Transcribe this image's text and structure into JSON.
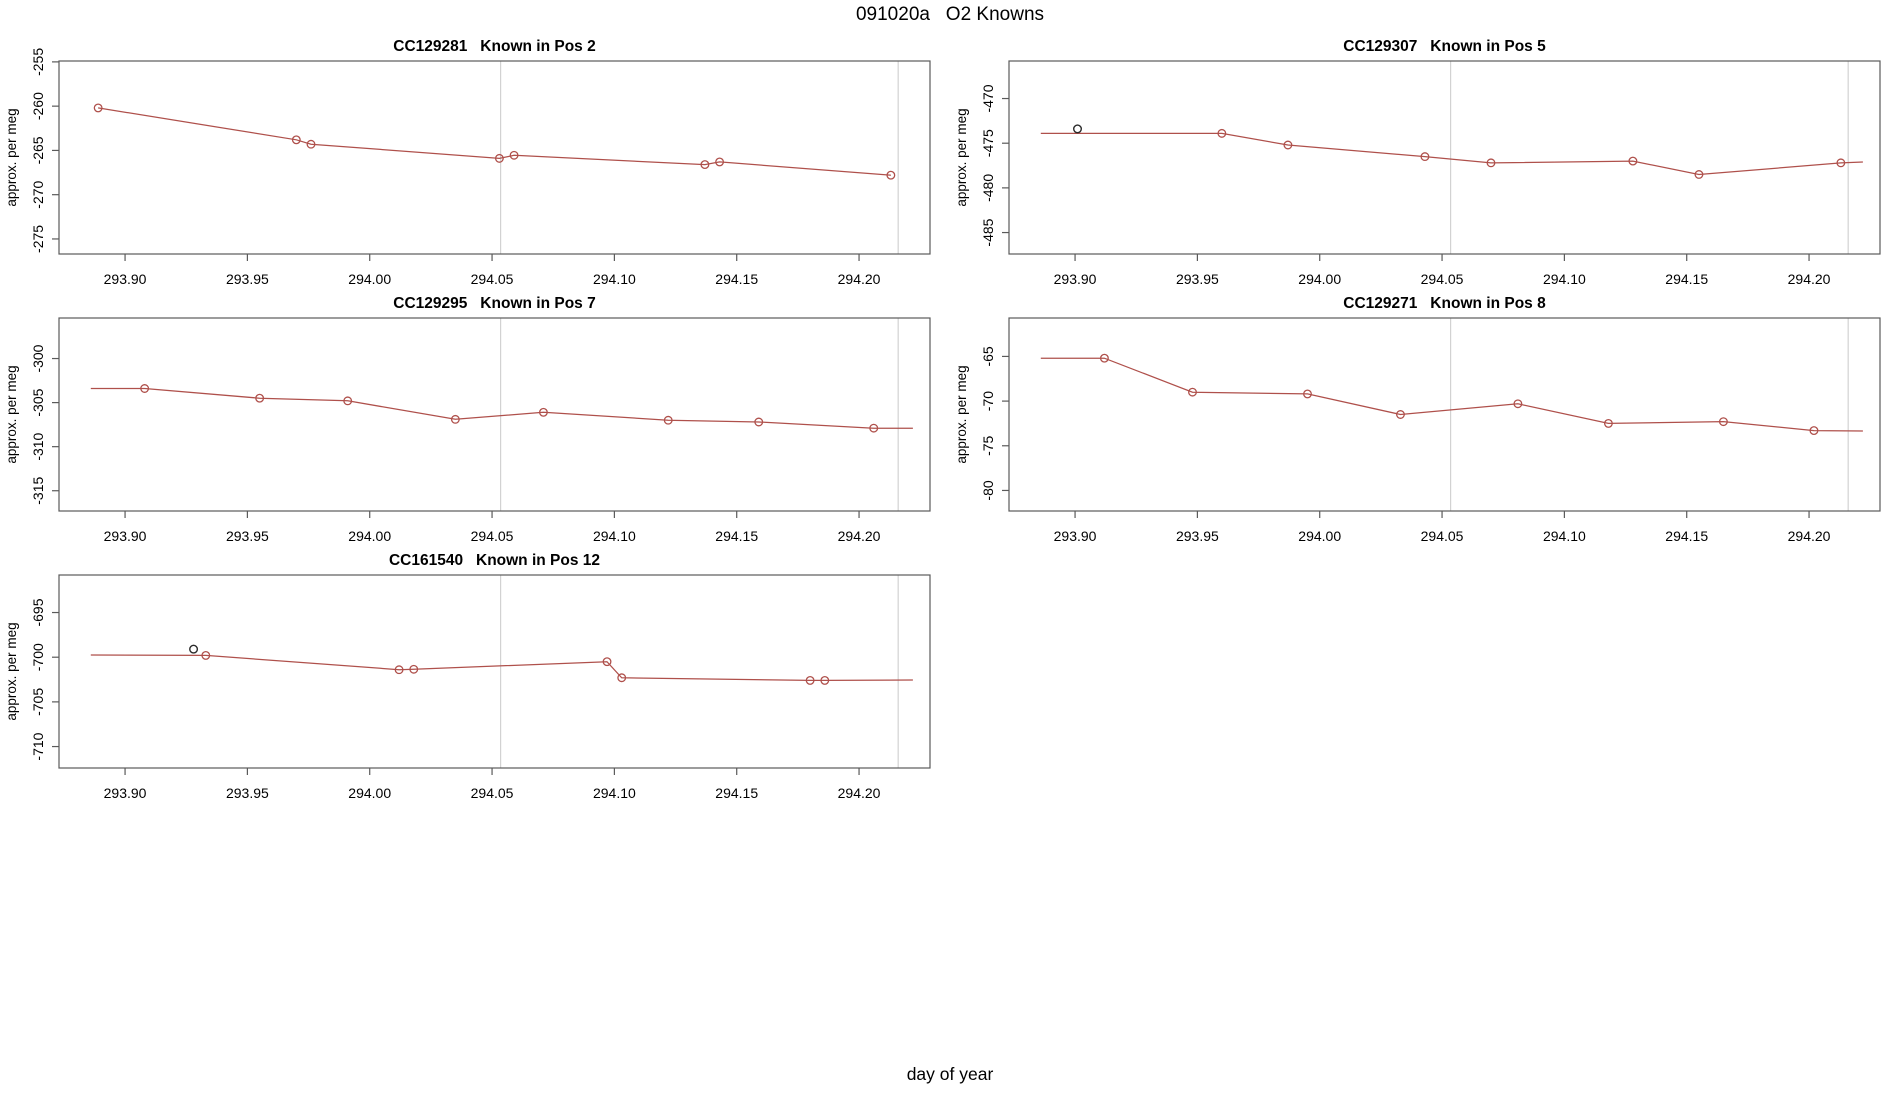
{
  "figure": {
    "title": "091020a   O2 Knowns",
    "x_axis_label": "day of year",
    "y_axis_label": "approx. per meg"
  },
  "style": {
    "series_color": "#af504b",
    "flag_point_color": "#2a2a2a",
    "grid_color": "#d2d2d2",
    "box_color": "#5a5a5a",
    "text_color": "#000000"
  },
  "axes": {
    "xlim": [
      293.873,
      294.229
    ],
    "x_tick_values": [
      293.9,
      293.95,
      294.0,
      294.05,
      294.1,
      294.15,
      294.2
    ],
    "x_tick_labels": [
      "293.90",
      "293.95",
      "294.00",
      "294.05",
      "294.10",
      "294.15",
      "294.20"
    ],
    "vlines": [
      294.0535,
      294.216
    ]
  },
  "chart_data": [
    {
      "type": "line",
      "panel": "row1-left",
      "title": "CC129281   Known in Pos 2",
      "ylabel": "approx. per meg",
      "xlabel": "day of year",
      "ylim": [
        -276.7,
        -254.9
      ],
      "y_ticks": [
        -255,
        -260,
        -265,
        -270,
        -275
      ],
      "line_x": [
        293.889,
        293.97,
        293.976,
        294.053,
        294.059,
        294.137,
        294.143,
        294.213
      ],
      "line_y": [
        -260.2,
        -263.8,
        -264.3,
        -265.9,
        -265.55,
        -266.6,
        -266.3,
        -267.8
      ],
      "marker_x": [
        293.889,
        293.97,
        293.976,
        294.053,
        294.059,
        294.137,
        294.143,
        294.213
      ],
      "marker_y": [
        -260.2,
        -263.8,
        -264.3,
        -265.9,
        -265.55,
        -266.6,
        -266.3,
        -267.8
      ],
      "flag_x": [],
      "flag_y": []
    },
    {
      "type": "line",
      "panel": "row1-right",
      "title": "CC129307   Known in Pos 5",
      "ylabel": "approx. per meg",
      "xlabel": "day of year",
      "ylim": [
        -487.4,
        -465.8
      ],
      "y_ticks": [
        -470,
        -475,
        -480,
        -485
      ],
      "line_x": [
        293.886,
        293.96,
        293.987,
        294.043,
        294.07,
        294.128,
        294.155,
        294.213,
        294.222
      ],
      "line_y": [
        -473.9,
        -473.9,
        -475.2,
        -476.5,
        -477.2,
        -477.0,
        -478.5,
        -477.2,
        -477.1
      ],
      "marker_x": [
        293.96,
        293.987,
        294.043,
        294.07,
        294.128,
        294.155,
        294.213
      ],
      "marker_y": [
        -473.9,
        -475.2,
        -476.5,
        -477.2,
        -477.0,
        -478.5,
        -477.2
      ],
      "flag_x": [
        293.901
      ],
      "flag_y": [
        -473.4
      ]
    },
    {
      "type": "line",
      "panel": "row2-left",
      "title": "CC129295   Known in Pos 7",
      "ylabel": "approx. per meg",
      "xlabel": "day of year",
      "ylim": [
        -317.3,
        -295.4
      ],
      "y_ticks": [
        -300,
        -305,
        -310,
        -315
      ],
      "line_x": [
        293.886,
        293.908,
        293.955,
        293.991,
        294.035,
        294.071,
        294.122,
        294.159,
        294.206,
        294.222
      ],
      "line_y": [
        -303.4,
        -303.4,
        -304.5,
        -304.8,
        -306.9,
        -306.1,
        -307.0,
        -307.2,
        -307.9,
        -307.9
      ],
      "marker_x": [
        293.908,
        293.955,
        293.991,
        294.035,
        294.071,
        294.122,
        294.159,
        294.206
      ],
      "marker_y": [
        -303.4,
        -304.5,
        -304.8,
        -306.9,
        -306.1,
        -307.0,
        -307.2,
        -307.9
      ],
      "flag_x": [],
      "flag_y": []
    },
    {
      "type": "line",
      "panel": "row2-right",
      "title": "CC129271   Known in Pos 8",
      "ylabel": "approx. per meg",
      "xlabel": "day of year",
      "ylim": [
        -82.3,
        -60.7
      ],
      "y_ticks": [
        -65,
        -70,
        -75,
        -80
      ],
      "line_x": [
        293.886,
        293.912,
        293.948,
        293.995,
        294.033,
        294.081,
        294.118,
        294.165,
        294.202,
        294.222
      ],
      "line_y": [
        -65.2,
        -65.2,
        -69.0,
        -69.2,
        -71.5,
        -70.3,
        -72.5,
        -72.3,
        -73.3,
        -73.35
      ],
      "marker_x": [
        293.912,
        293.948,
        293.995,
        294.033,
        294.081,
        294.118,
        294.165,
        294.202
      ],
      "marker_y": [
        -65.2,
        -69.0,
        -69.2,
        -71.5,
        -70.3,
        -72.5,
        -72.3,
        -73.3
      ],
      "flag_x": [],
      "flag_y": []
    },
    {
      "type": "line",
      "panel": "row3-left",
      "title": "CC161540   Known in Pos 12",
      "ylabel": "approx. per meg",
      "xlabel": "day of year",
      "ylim": [
        -712.4,
        -690.8
      ],
      "y_ticks": [
        -695,
        -700,
        -705,
        -710
      ],
      "line_x": [
        293.886,
        293.933,
        294.012,
        294.018,
        294.097,
        294.103,
        294.18,
        294.186,
        294.222
      ],
      "line_y": [
        -699.75,
        -699.8,
        -701.4,
        -701.35,
        -700.5,
        -702.3,
        -702.6,
        -702.6,
        -702.55
      ],
      "marker_x": [
        293.933,
        294.012,
        294.018,
        294.097,
        294.103,
        294.18,
        294.186
      ],
      "marker_y": [
        -699.8,
        -701.4,
        -701.35,
        -700.5,
        -702.3,
        -702.6,
        -702.6
      ],
      "flag_x": [
        293.928
      ],
      "flag_y": [
        -699.1
      ]
    }
  ]
}
